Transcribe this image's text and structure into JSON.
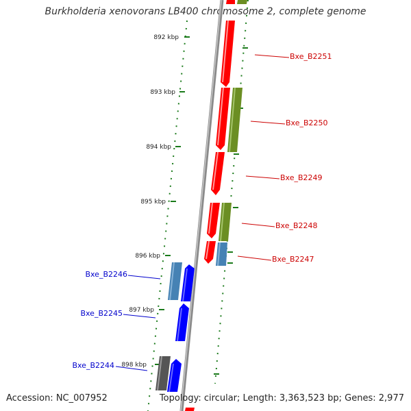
{
  "title": "Burkholderia xenovorans LB400 chromosome 2, complete genome",
  "footer": {
    "accession": "Accession: NC_007952",
    "topology": "Topology: circular; Length: 3,363,523 bp; Genes: 2,977"
  },
  "scale": {
    "unit": "kbp",
    "ticks": [
      "892 kbp",
      "893 kbp",
      "894 kbp",
      "895 kbp",
      "896 kbp",
      "897 kbp",
      "898 kbp"
    ]
  },
  "genes": {
    "right": [
      "Bxe_B2251",
      "Bxe_B2250",
      "Bxe_B2249",
      "Bxe_B2248",
      "Bxe_B2247"
    ],
    "left": [
      "Bxe_B2246",
      "Bxe_B2245",
      "Bxe_B2244"
    ]
  },
  "colors": {
    "cds_forward": "#ff0000",
    "cds_reverse": "#0000ff",
    "olive_feature": "#6b8e23",
    "steel_feature": "#4682b4",
    "gray_feature": "#555555",
    "tick_green": "#1a7a1a",
    "label_red": "#cc0000",
    "label_blue": "#0000cc",
    "backbone": "#808080"
  }
}
